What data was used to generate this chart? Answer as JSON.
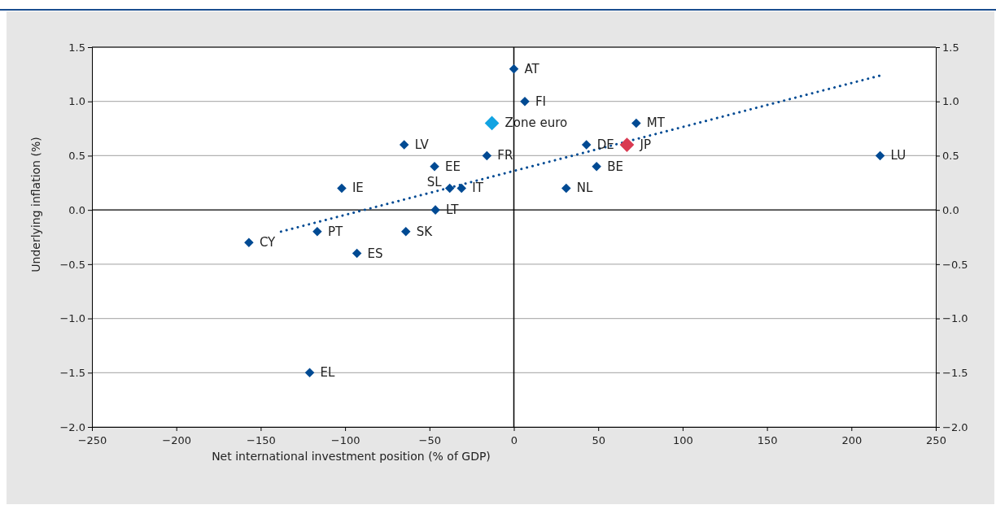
{
  "chart_data": {
    "type": "scatter",
    "xlabel": "Net international investment position  (% of GDP)",
    "ylabel": "Underlying inflation  (%)",
    "xlim": [
      -250,
      250
    ],
    "xticks": [
      {
        "value": -250,
        "label": "−250"
      },
      {
        "value": -200,
        "label": "−200"
      },
      {
        "value": -150,
        "label": "−150"
      },
      {
        "value": -100,
        "label": "−100"
      },
      {
        "value": -50,
        "label": "−50"
      },
      0,
      50,
      100,
      150,
      200,
      250
    ],
    "ylim": [
      -2,
      1.5
    ],
    "yticks": [
      {
        "value": -2,
        "label": "−2.0"
      },
      {
        "value": -1.5,
        "label": "−1.5"
      },
      {
        "value": -1,
        "label": "−1.0"
      },
      {
        "value": -0.5,
        "label": "−0.5"
      },
      {
        "value": 0,
        "label": "0.0"
      },
      {
        "value": 0.5,
        "label": "0.5"
      },
      {
        "value": 1,
        "label": "1.0"
      },
      {
        "value": 1.5,
        "label": "1.5"
      }
    ],
    "y2lim": [
      -2,
      1.5
    ],
    "y2ticks": [
      {
        "value": -2,
        "label": "−2.0"
      },
      {
        "value": -1.5,
        "label": "−1.5"
      },
      {
        "value": -1,
        "label": "−1.0"
      },
      {
        "value": -0.5,
        "label": "−0.5"
      },
      {
        "value": 0,
        "label": "0.0"
      },
      {
        "value": 0.5,
        "label": "0.5"
      },
      {
        "value": 1,
        "label": "1.0"
      },
      {
        "value": 1.5,
        "label": "1.5"
      }
    ],
    "grid": "y",
    "marker": "diamond",
    "ref_lines": [
      {
        "axis": "x",
        "value": 0,
        "color": "#000000"
      }
    ],
    "series": [
      {
        "type": "line",
        "marker": "none",
        "line_style": "dotted",
        "color": "#004a93",
        "x": [
          -138,
          217.5
        ],
        "values": [
          -0.2,
          1.24
        ]
      },
      {
        "name": "AT",
        "color": "#004a93",
        "x": [
          0
        ],
        "values": [
          1.3
        ]
      },
      {
        "name": "FI",
        "color": "#004a93",
        "x": [
          6.5
        ],
        "values": [
          1.0
        ]
      },
      {
        "name": "Zone euro",
        "color": "#12a3e2",
        "x": [
          -13
        ],
        "values": [
          0.8
        ]
      },
      {
        "name": "MT",
        "color": "#004a93",
        "x": [
          72.5
        ],
        "values": [
          0.8
        ]
      },
      {
        "name": "LV",
        "color": "#004a93",
        "x": [
          -65
        ],
        "values": [
          0.6
        ]
      },
      {
        "name": "DE",
        "color": "#004a93",
        "x": [
          43
        ],
        "values": [
          0.6
        ]
      },
      {
        "name": "JP",
        "color": "#d93a52",
        "x": [
          67
        ],
        "values": [
          0.6
        ]
      },
      {
        "name": "FR",
        "color": "#004a93",
        "x": [
          -16
        ],
        "values": [
          0.5
        ]
      },
      {
        "name": "LU",
        "color": "#004a93",
        "x": [
          217
        ],
        "values": [
          0.5
        ]
      },
      {
        "name": "EE",
        "color": "#004a93",
        "x": [
          -47
        ],
        "values": [
          0.4
        ]
      },
      {
        "name": "BE",
        "color": "#004a93",
        "x": [
          49
        ],
        "values": [
          0.4
        ]
      },
      {
        "name": "IE",
        "color": "#004a93",
        "x": [
          -102
        ],
        "values": [
          0.2
        ]
      },
      {
        "name": "SL",
        "color": "#004a93",
        "x": [
          -38
        ],
        "values": [
          0.2
        ]
      },
      {
        "name": "IT",
        "color": "#004a93",
        "x": [
          -31
        ],
        "values": [
          0.2
        ]
      },
      {
        "name": "NL",
        "color": "#004a93",
        "x": [
          31
        ],
        "values": [
          0.2
        ]
      },
      {
        "name": "LT",
        "color": "#004a93",
        "x": [
          -46.5
        ],
        "values": [
          0
        ]
      },
      {
        "name": "CY",
        "color": "#004a93",
        "x": [
          -157
        ],
        "values": [
          -0.3
        ]
      },
      {
        "name": "PT",
        "color": "#004a93",
        "x": [
          -116.5
        ],
        "values": [
          -0.2
        ]
      },
      {
        "name": "SK",
        "color": "#004a93",
        "x": [
          -64
        ],
        "values": [
          -0.2
        ]
      },
      {
        "name": "ES",
        "color": "#004a93",
        "x": [
          -93
        ],
        "values": [
          -0.4
        ]
      },
      {
        "name": "EL",
        "color": "#004a93",
        "x": [
          -121
        ],
        "values": [
          -1.5
        ]
      }
    ]
  }
}
